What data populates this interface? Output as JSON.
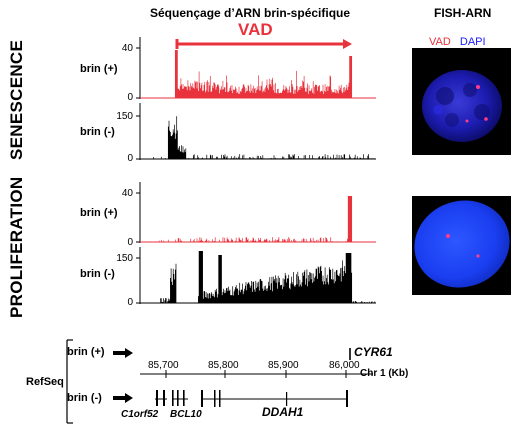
{
  "header": {
    "sequencing_title": "Séquençage d’ARN brin-spécifique",
    "fish_title": "FISH-ARN"
  },
  "conditions": [
    {
      "label": "SENESCENCE",
      "tracks": [
        {
          "strand": "brin (+)",
          "color": "#e8323c",
          "y_max": "40",
          "y_min": "0"
        },
        {
          "strand": "brin (-)",
          "color": "#000000",
          "y_max": "150",
          "y_min": "0"
        }
      ]
    },
    {
      "label": "PROLIFERATION",
      "tracks": [
        {
          "strand": "brin (+)",
          "color": "#e8323c",
          "y_max": "40",
          "y_min": "0"
        },
        {
          "strand": "brin (-)",
          "color": "#000000",
          "y_max": "150",
          "y_min": "0"
        }
      ]
    }
  ],
  "vad_label": "VAD",
  "fish_legend": {
    "vad": "VAD",
    "dapi": "DAPI",
    "vad_color": "#e8323c",
    "dapi_color": "#1a1aff"
  },
  "refseq": {
    "label": "RefSeq",
    "plus_strand": "brin (+)",
    "minus_strand": "brin (-)",
    "axis_ticks": [
      "85,700",
      "85,800",
      "85,900",
      "86,000"
    ],
    "axis_unit": "Chr 1 (Kb)",
    "genes": {
      "cyr61": "CYR61",
      "c1orf52": "C1orf52",
      "bcl10": "BCL10",
      "ddah1": "DDAH1"
    }
  }
}
